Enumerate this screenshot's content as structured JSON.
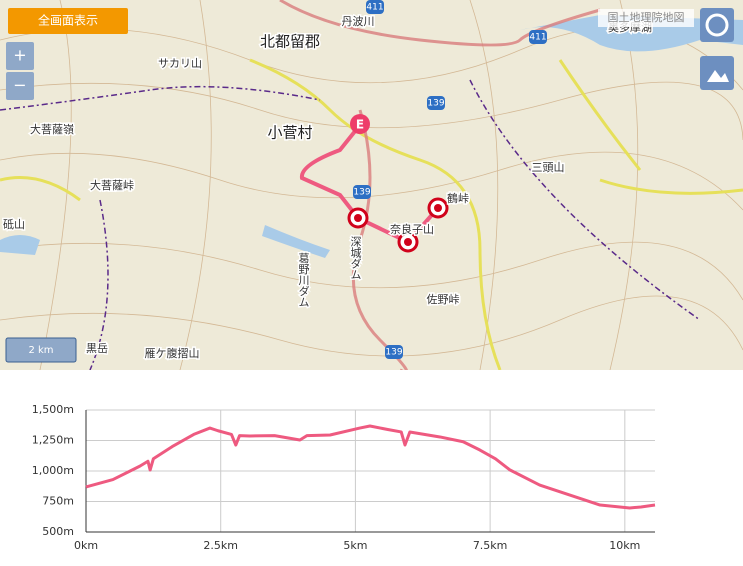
{
  "map": {
    "fullscreen_button": "全画面表示",
    "zoom_in": "+",
    "zoom_out": "−",
    "attribution": "国土地理院地図",
    "scale": "2 km",
    "route_label": "E",
    "labels": [
      "北都留郡",
      "小菅村",
      "丹波川",
      "サカリ山",
      "大菩薩嶺",
      "大菩薩峠",
      "砥山",
      "葛野川ダム",
      "深城ダム",
      "鶴峠",
      "奈良子山",
      "佐野峠",
      "黒岳",
      "雁ケ腹摺山",
      "三頭山",
      "奥多摩湖"
    ],
    "road_numbers": [
      "411",
      "411",
      "139",
      "139",
      "139"
    ]
  },
  "chart_data": {
    "type": "line",
    "x": [
      0,
      0.5,
      1.0,
      1.15,
      1.19,
      1.25,
      1.6,
      2.0,
      2.3,
      2.45,
      2.7,
      2.78,
      2.85,
      3.04,
      3.5,
      3.97,
      4.1,
      4.53,
      5.08,
      5.27,
      5.6,
      5.85,
      5.92,
      6.01,
      6.57,
      7.0,
      7.31,
      7.6,
      7.87,
      8.42,
      8.98,
      9.54,
      10.09,
      10.3,
      10.56
    ],
    "series": [
      {
        "color": "#ee5a80",
        "values": [
          869,
          930,
          1040,
          1080,
          1008,
          1100,
          1200,
          1300,
          1352,
          1330,
          1300,
          1213,
          1290,
          1287,
          1290,
          1254,
          1290,
          1295,
          1352,
          1369,
          1340,
          1320,
          1213,
          1320,
          1279,
          1240,
          1172,
          1100,
          1008,
          885,
          803,
          721,
          697,
          705,
          721
        ]
      }
    ],
    "xlim": [
      0,
      10.56
    ],
    "ylim": [
      500,
      1500
    ],
    "xticks": [
      {
        "value": 0,
        "label": "0km"
      },
      {
        "value": 2.5,
        "label": "2.5km"
      },
      {
        "value": 5,
        "label": "5km"
      },
      {
        "value": 7.5,
        "label": "7.5km"
      },
      {
        "value": 10,
        "label": "10km"
      }
    ],
    "yticks": [
      {
        "value": 500,
        "label": "500m"
      },
      {
        "value": 750,
        "label": "750m"
      },
      {
        "value": 1000,
        "label": "1,000m"
      },
      {
        "value": 1250,
        "label": "1,250m"
      },
      {
        "value": 1500,
        "label": "1,500m"
      }
    ],
    "grid": true
  }
}
